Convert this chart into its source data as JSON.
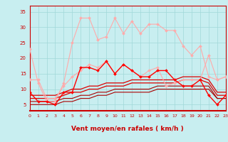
{
  "xlabel": "Vent moyen/en rafales ( km/h )",
  "xlim": [
    0,
    23
  ],
  "ylim": [
    3,
    37
  ],
  "yticks": [
    5,
    10,
    15,
    20,
    25,
    30,
    35
  ],
  "xticks": [
    0,
    1,
    2,
    3,
    4,
    5,
    6,
    7,
    8,
    9,
    10,
    11,
    12,
    13,
    14,
    15,
    16,
    17,
    18,
    19,
    20,
    21,
    22,
    23
  ],
  "background_color": "#c8eef0",
  "grid_color": "#a0d8d8",
  "lines": [
    {
      "x": [
        0,
        1,
        2,
        3,
        4,
        5,
        6,
        7,
        8,
        9,
        10,
        11,
        12,
        13,
        14,
        15,
        16,
        17,
        18,
        19,
        20,
        21,
        22,
        23
      ],
      "y": [
        23,
        12,
        6,
        6,
        12,
        25,
        33,
        33,
        26,
        27,
        33,
        28,
        32,
        28,
        31,
        31,
        29,
        29,
        24,
        21,
        24,
        14,
        13,
        14
      ],
      "color": "#ffaaaa",
      "lw": 0.8,
      "marker": "D",
      "ms": 2.0,
      "zorder": 3
    },
    {
      "x": [
        0,
        1,
        2,
        3,
        4,
        5,
        6,
        7,
        8,
        9,
        10,
        11,
        12,
        13,
        14,
        15,
        16,
        17,
        18,
        19,
        20,
        21,
        22,
        23
      ],
      "y": [
        13,
        13,
        7,
        7,
        11,
        14,
        16,
        18,
        17,
        19,
        15,
        18,
        16,
        14,
        16,
        17,
        11,
        12,
        13,
        13,
        13,
        21,
        13,
        14
      ],
      "color": "#ffaaaa",
      "lw": 0.8,
      "marker": "D",
      "ms": 2.0,
      "zorder": 3
    },
    {
      "x": [
        0,
        1,
        2,
        3,
        4,
        5,
        6,
        7,
        8,
        9,
        10,
        11,
        12,
        13,
        14,
        15,
        16,
        17,
        18,
        19,
        20,
        21,
        22,
        23
      ],
      "y": [
        9,
        6,
        6,
        5,
        9,
        9,
        17,
        17,
        16,
        19,
        15,
        18,
        16,
        14,
        14,
        16,
        16,
        13,
        11,
        11,
        13,
        8,
        5,
        8
      ],
      "color": "#ff0000",
      "lw": 1.0,
      "marker": "D",
      "ms": 2.0,
      "zorder": 4
    },
    {
      "x": [
        0,
        1,
        2,
        3,
        4,
        5,
        6,
        7,
        8,
        9,
        10,
        11,
        12,
        13,
        14,
        15,
        16,
        17,
        18,
        19,
        20,
        21,
        22,
        23
      ],
      "y": [
        8,
        8,
        8,
        8,
        9,
        10,
        10,
        11,
        11,
        12,
        12,
        12,
        13,
        13,
        13,
        13,
        13,
        13,
        14,
        14,
        14,
        13,
        9,
        9
      ],
      "color": "#dd0000",
      "lw": 0.9,
      "marker": null,
      "ms": 0,
      "zorder": 2
    },
    {
      "x": [
        0,
        1,
        2,
        3,
        4,
        5,
        6,
        7,
        8,
        9,
        10,
        11,
        12,
        13,
        14,
        15,
        16,
        17,
        18,
        19,
        20,
        21,
        22,
        23
      ],
      "y": [
        7,
        7,
        7,
        7,
        8,
        9,
        9,
        10,
        10,
        11,
        11,
        11,
        12,
        12,
        12,
        12,
        12,
        12,
        13,
        13,
        13,
        12,
        8,
        8
      ],
      "color": "#dd0000",
      "lw": 0.9,
      "marker": null,
      "ms": 0,
      "zorder": 2
    },
    {
      "x": [
        0,
        1,
        2,
        3,
        4,
        5,
        6,
        7,
        8,
        9,
        10,
        11,
        12,
        13,
        14,
        15,
        16,
        17,
        18,
        19,
        20,
        21,
        22,
        23
      ],
      "y": [
        6,
        6,
        6,
        6,
        7,
        7,
        8,
        8,
        9,
        9,
        10,
        10,
        10,
        10,
        10,
        11,
        11,
        11,
        11,
        11,
        11,
        11,
        7,
        7
      ],
      "color": "#aa0000",
      "lw": 0.8,
      "marker": null,
      "ms": 0,
      "zorder": 2
    },
    {
      "x": [
        0,
        1,
        2,
        3,
        4,
        5,
        6,
        7,
        8,
        9,
        10,
        11,
        12,
        13,
        14,
        15,
        16,
        17,
        18,
        19,
        20,
        21,
        22,
        23
      ],
      "y": [
        5,
        5,
        5,
        5,
        6,
        6,
        7,
        7,
        8,
        8,
        9,
        9,
        9,
        9,
        9,
        10,
        10,
        10,
        10,
        10,
        10,
        10,
        7,
        7
      ],
      "color": "#aa0000",
      "lw": 0.8,
      "marker": null,
      "ms": 0,
      "zorder": 2
    }
  ],
  "arrow_color": "#cc0000",
  "tick_color": "#cc0000",
  "label_color": "#cc0000",
  "tick_fontsize": 4.5,
  "xlabel_fontsize": 6.5
}
